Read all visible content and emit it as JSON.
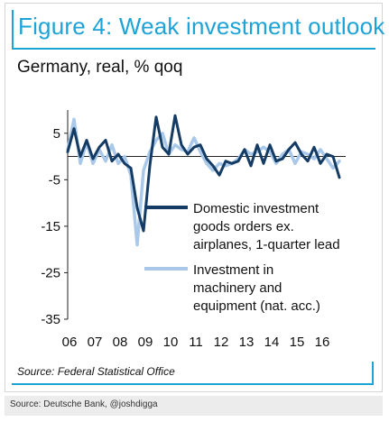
{
  "footer": {
    "credit": "Source: Deutsche Bank, @joshdigga"
  },
  "chart_data": {
    "type": "line",
    "title": "Figure 4: Weak investment outlook",
    "subtitle": "Germany, real, % qoq",
    "source": "Source: Federal Statistical Office",
    "ylim": [
      -35,
      10
    ],
    "yticks": [
      5,
      -5,
      -15,
      -25,
      -35
    ],
    "xlim": [
      2006.0,
      2017.0
    ],
    "xticks": [
      {
        "label": "06",
        "x": 2006.0
      },
      {
        "label": "07",
        "x": 2007.0
      },
      {
        "label": "08",
        "x": 2008.0
      },
      {
        "label": "09",
        "x": 2009.0
      },
      {
        "label": "10",
        "x": 2010.0
      },
      {
        "label": "11",
        "x": 2011.0
      },
      {
        "label": "12",
        "x": 2012.0
      },
      {
        "label": "13",
        "x": 2013.0
      },
      {
        "label": "14",
        "x": 2014.0
      },
      {
        "label": "15",
        "x": 2015.0
      },
      {
        "label": "16",
        "x": 2016.0
      }
    ],
    "grid": false,
    "legend_position": "center-right",
    "series": [
      {
        "name": "Domestic investment goods orders ex. airplanes, 1-quarter lead",
        "color": "#143b63",
        "x": [
          2006.0,
          2006.25,
          2006.5,
          2006.75,
          2007.0,
          2007.25,
          2007.5,
          2007.75,
          2008.0,
          2008.25,
          2008.5,
          2008.75,
          2009.0,
          2009.25,
          2009.5,
          2009.75,
          2010.0,
          2010.25,
          2010.5,
          2010.75,
          2011.0,
          2011.25,
          2011.5,
          2011.75,
          2012.0,
          2012.25,
          2012.5,
          2012.75,
          2013.0,
          2013.25,
          2013.5,
          2013.75,
          2014.0,
          2014.25,
          2014.5,
          2014.75,
          2015.0,
          2015.25,
          2015.5,
          2015.75,
          2016.0,
          2016.25,
          2016.5,
          2016.75
        ],
        "values": [
          1.0,
          6.0,
          0.0,
          3.5,
          -0.5,
          2.0,
          3.5,
          -1.0,
          0.5,
          -1.5,
          -2.5,
          -11.0,
          -16.0,
          -2.0,
          8.5,
          2.0,
          0.5,
          8.8,
          2.5,
          0.5,
          2.0,
          2.5,
          -0.5,
          -2.0,
          -4.0,
          -1.0,
          -1.5,
          -1.0,
          1.5,
          -2.0,
          2.5,
          -1.5,
          2.5,
          -1.0,
          -0.5,
          1.5,
          3.0,
          0.5,
          -1.0,
          2.0,
          -1.5,
          0.5,
          0.0,
          -4.5
        ]
      },
      {
        "name": "Investment in machinery and equipment (nat. acc.)",
        "color": "#a9c8ea",
        "x": [
          2006.0,
          2006.25,
          2006.5,
          2006.75,
          2007.0,
          2007.25,
          2007.5,
          2007.75,
          2008.0,
          2008.25,
          2008.5,
          2008.75,
          2009.0,
          2009.25,
          2009.5,
          2009.75,
          2010.0,
          2010.25,
          2010.5,
          2010.75,
          2011.0,
          2011.25,
          2011.5,
          2011.75,
          2012.0,
          2012.25,
          2012.5,
          2012.75,
          2013.0,
          2013.25,
          2013.5,
          2013.75,
          2014.0,
          2014.25,
          2014.5,
          2014.75,
          2015.0,
          2015.25,
          2015.5,
          2015.75,
          2016.0,
          2016.25,
          2016.5,
          2016.75
        ],
        "values": [
          1.5,
          8.0,
          -1.5,
          3.0,
          -1.5,
          1.5,
          -1.0,
          2.5,
          -1.5,
          0.0,
          -4.0,
          -19.0,
          -3.0,
          1.0,
          3.5,
          5.0,
          0.5,
          2.5,
          1.5,
          1.0,
          4.0,
          1.0,
          -1.5,
          -3.0,
          -1.5,
          -2.0,
          -1.5,
          -0.5,
          1.5,
          0.5,
          1.0,
          2.0,
          1.0,
          -1.5,
          0.5,
          1.5,
          -1.5,
          1.0,
          0.5,
          -0.5,
          1.5,
          -0.5,
          -2.5,
          -1.0
        ]
      }
    ]
  }
}
